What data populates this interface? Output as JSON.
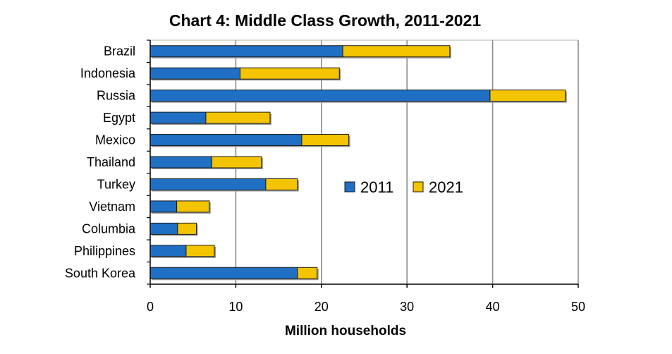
{
  "chart_data": {
    "type": "bar",
    "orientation": "horizontal",
    "stacked": true,
    "title": "Chart 4: Middle Class Growth, 2011-2021",
    "xlabel": "Million households",
    "ylabel": "",
    "xlim": [
      0,
      50
    ],
    "xticks": [
      0,
      10,
      20,
      30,
      40,
      50
    ],
    "grid": true,
    "legend_position": "center-right",
    "categories": [
      "Brazil",
      "Indonesia",
      "Russia",
      "Egypt",
      "Mexico",
      "Thailand",
      "Turkey",
      "Vietnam",
      "Columbia",
      "Philippines",
      "South Korea"
    ],
    "series": [
      {
        "name": "2011",
        "color": "#1f6fc5",
        "values": [
          22.5,
          10.5,
          39.7,
          6.5,
          17.7,
          7.2,
          13.5,
          3.1,
          3.2,
          4.2,
          17.2
        ]
      },
      {
        "name": "2021",
        "color": "#f5c400",
        "values": [
          12.5,
          11.6,
          8.8,
          7.5,
          5.5,
          5.8,
          3.7,
          3.8,
          2.2,
          3.3,
          2.3
        ]
      }
    ]
  }
}
